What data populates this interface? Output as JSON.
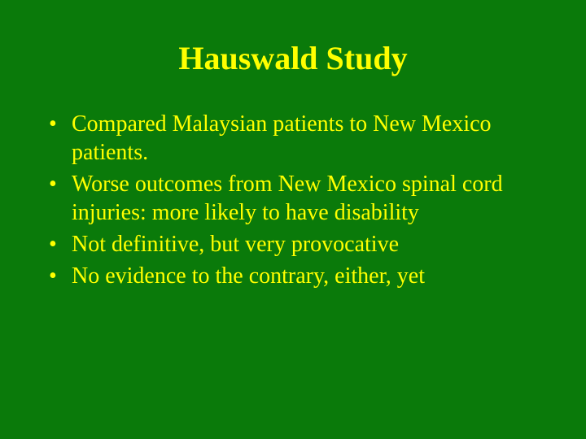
{
  "background_color": "#0a7a0a",
  "text_color": "#ffff00",
  "font_family": "Times New Roman",
  "title": {
    "text": "Hauswald Study",
    "fontsize": 40,
    "weight": "bold"
  },
  "bullets": [
    {
      "marker": "•",
      "text": "Compared Malaysian patients to New Mexico patients."
    },
    {
      "marker": "•",
      "text": "Worse outcomes from New Mexico spinal cord injuries: more likely to have disability"
    },
    {
      "marker": "•",
      "text": "Not definitive, but very provocative"
    },
    {
      "marker": "•",
      "text": "No evidence to the contrary, either, yet"
    }
  ],
  "body_fontsize": 28
}
